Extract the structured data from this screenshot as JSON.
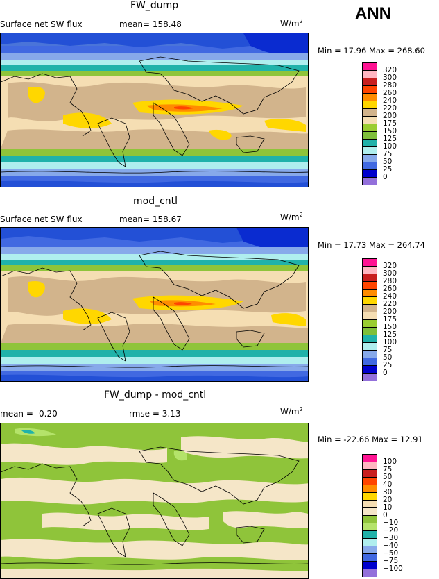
{
  "season": "ANN",
  "panels": [
    {
      "id": "p1",
      "title": "FW_dump",
      "variable": "Surface net SW flux",
      "stat_text": "mean= 158.48",
      "units": "W/m",
      "units_exp": "2",
      "minmax": "Min =  17.96 Max = 268.60",
      "levels": [
        "320",
        "300",
        "280",
        "260",
        "240",
        "220",
        "200",
        "175",
        "150",
        "125",
        "100",
        "75",
        "50",
        "25",
        "0"
      ],
      "colors": [
        "#ff1493",
        "#ffb6c1",
        "#c81e1e",
        "#ff4500",
        "#ff8c00",
        "#ffd700",
        "#d2b48c",
        "#f5deb3",
        "#9acd32",
        "#7fc03a",
        "#20b2aa",
        "#afeeee",
        "#87a9ea",
        "#4169e1",
        "#0000cd",
        "#9370db"
      ]
    },
    {
      "id": "p2",
      "title": "mod_cntl",
      "variable": "Surface net SW flux",
      "stat_text": "mean= 158.67",
      "units": "W/m",
      "units_exp": "2",
      "minmax": "Min =  17.73 Max = 264.74",
      "levels": [
        "320",
        "300",
        "280",
        "260",
        "240",
        "220",
        "200",
        "175",
        "150",
        "125",
        "100",
        "75",
        "50",
        "25",
        "0"
      ],
      "colors": [
        "#ff1493",
        "#ffb6c1",
        "#c81e1e",
        "#ff4500",
        "#ff8c00",
        "#ffd700",
        "#d2b48c",
        "#f5deb3",
        "#9acd32",
        "#7fc03a",
        "#20b2aa",
        "#afeeee",
        "#87a9ea",
        "#4169e1",
        "#0000cd",
        "#9370db"
      ]
    },
    {
      "id": "p3",
      "title": "FW_dump - mod_cntl",
      "stat_left": "mean =   -0.20",
      "stat_right": "rmse =   3.13",
      "units": "W/m",
      "units_exp": "2",
      "minmax": "Min = -22.66 Max =  12.91",
      "levels": [
        "100",
        "75",
        "50",
        "40",
        "30",
        "20",
        "10",
        "0",
        "−10",
        "−20",
        "−30",
        "−40",
        "−50",
        "−75",
        "−100"
      ],
      "colors": [
        "#ff1493",
        "#ffb6c1",
        "#c81e1e",
        "#ff4500",
        "#ff8c00",
        "#ffd700",
        "#f5deb3",
        "#f5e6c8",
        "#8fc43a",
        "#b4e36a",
        "#20b2aa",
        "#afeeee",
        "#87a9ea",
        "#4169e1",
        "#0000cd",
        "#9370db"
      ]
    }
  ]
}
